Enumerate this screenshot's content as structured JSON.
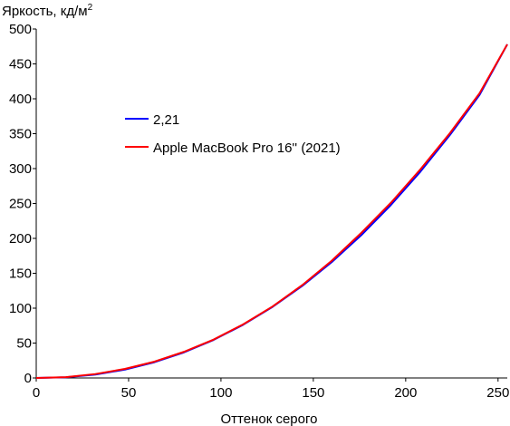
{
  "chart_data": {
    "type": "line",
    "title": "",
    "ylabel": "Яркость, кд/м",
    "ylabel_sup": "2",
    "xlabel": "Оттенок серого",
    "xlim": [
      0,
      255
    ],
    "ylim": [
      0,
      500
    ],
    "xticks": [
      0,
      50,
      100,
      150,
      200,
      250
    ],
    "yticks": [
      0,
      50,
      100,
      150,
      200,
      250,
      300,
      350,
      400,
      450,
      500
    ],
    "grid": false,
    "legend": "left-center",
    "series": [
      {
        "name": "2,21",
        "color": "#0000ff",
        "gamma": 2.21,
        "x": [
          0,
          16,
          32,
          48,
          64,
          80,
          96,
          112,
          128,
          144,
          160,
          176,
          192,
          208,
          224,
          240,
          255
        ],
        "values": [
          0,
          1.0,
          4.9,
          12.0,
          22.6,
          36.7,
          54.5,
          76.2,
          102.0,
          131.9,
          166.1,
          204.7,
          247.9,
          295.7,
          348.3,
          405.6,
          478.0
        ]
      },
      {
        "name": "Apple MacBook Pro 16'' (2021)",
        "color": "#ff0000",
        "x": [
          0,
          16,
          32,
          48,
          64,
          80,
          96,
          112,
          128,
          144,
          160,
          176,
          192,
          208,
          224,
          240,
          255
        ],
        "values": [
          0,
          1.2,
          5.6,
          13.0,
          23.4,
          37.5,
          55.0,
          76.8,
          102.5,
          133.0,
          168.0,
          208.0,
          251.0,
          299.0,
          351.0,
          408.0,
          478.0
        ]
      }
    ]
  }
}
